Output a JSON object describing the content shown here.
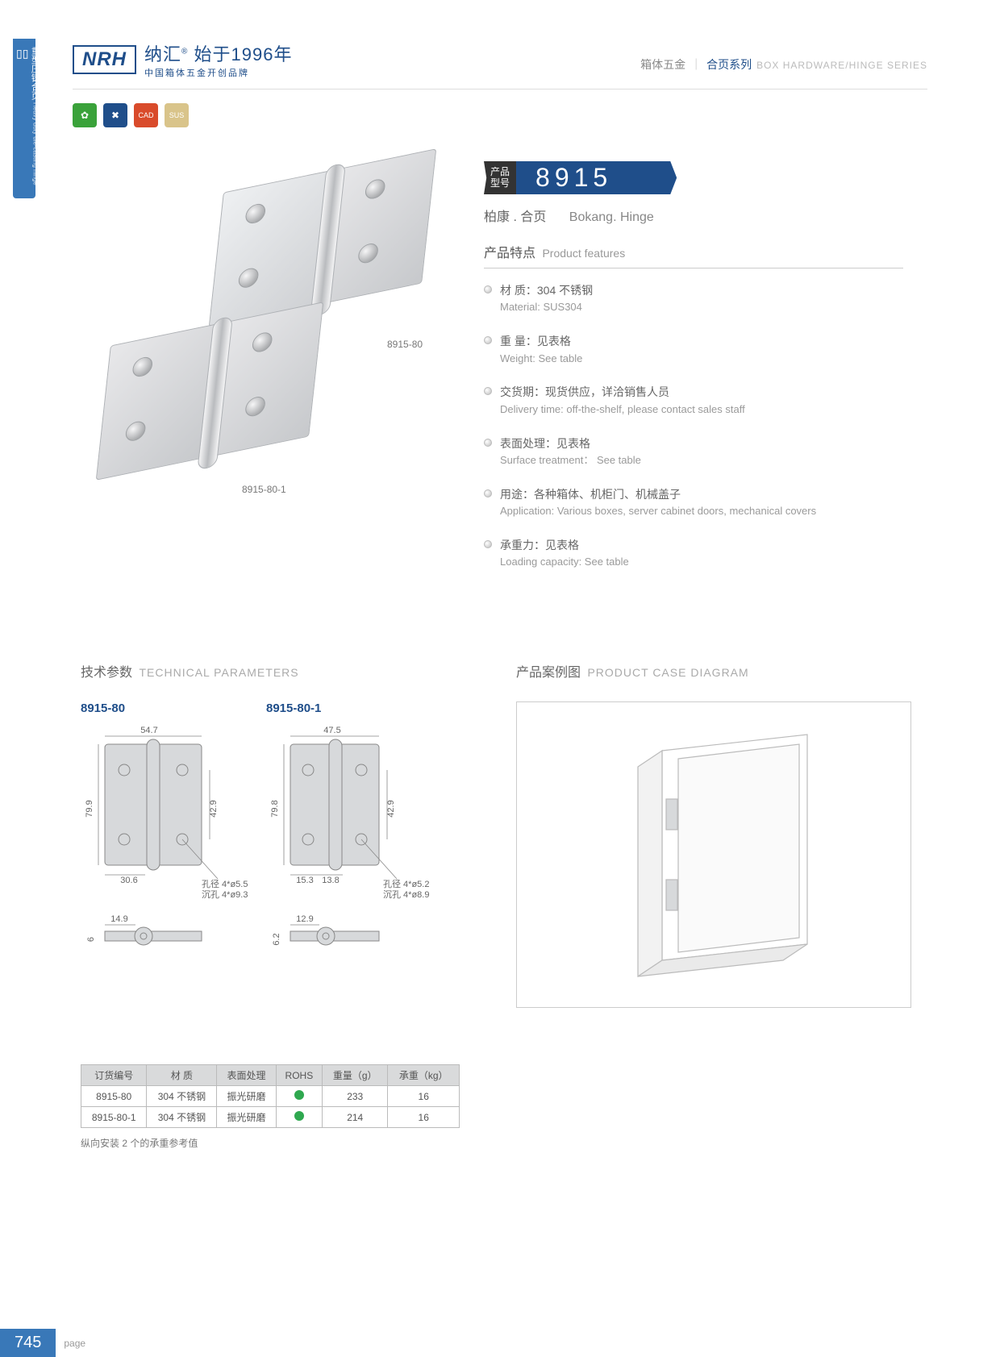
{
  "sideTab": {
    "cn": "重型压铸合页",
    "en": "Heavy duty die-casting hinge"
  },
  "brand": {
    "logo": "NRH",
    "mainCn": "纳汇",
    "mainSuffix": "始于1996年",
    "sub": "中国箱体五金开创品牌"
  },
  "topRight": {
    "cn1": "箱体五金",
    "cn2": "合页系列",
    "en": "BOX HARDWARE/HINGE SERIES"
  },
  "badges": {
    "b1": "✿",
    "b2": "✖",
    "b3": "CAD",
    "b4": "SUS"
  },
  "heroLabels": {
    "l1": "8915-80",
    "l2": "8915-80-1"
  },
  "model": {
    "tag1": "产品",
    "tag2": "型号",
    "number": "8915",
    "subCn": "柏康 . 合页",
    "subEn": "Bokang. Hinge"
  },
  "features": {
    "titleCn": "产品特点",
    "titleEn": "Product features",
    "items": [
      {
        "cn": "材  质：304 不锈钢",
        "en": "Material: SUS304"
      },
      {
        "cn": "重  量：见表格",
        "en": "Weight: See table"
      },
      {
        "cn": "交货期：现货供应，详洽销售人员",
        "en": "Delivery time: off-the-shelf, please contact sales staff"
      },
      {
        "cn": "表面处理：见表格",
        "en": "Surface treatment： See table"
      },
      {
        "cn": "用途：各种箱体、机柜门、机械盖子",
        "en": "Application: Various boxes, server cabinet doors, mechanical covers"
      },
      {
        "cn": "承重力：见表格",
        "en": "Loading capacity: See table"
      }
    ]
  },
  "sections": {
    "techCn": "技术参数",
    "techEn": "TECHNICAL PARAMETERS",
    "caseCn": "产品案例图",
    "caseEn": "PRODUCT CASE DIAGRAM"
  },
  "drawings": {
    "d1": {
      "label": "8915-80",
      "w": "54.7",
      "h": "79.9",
      "innerH": "42.9",
      "col": "30.6",
      "sideW": "14.9",
      "sideH": "6",
      "hole1": "孔径 4*ø5.5",
      "hole2": "沉孔 4*ø9.3"
    },
    "d2": {
      "label": "8915-80-1",
      "w": "47.5",
      "h": "79.8",
      "innerH": "42.9",
      "col1": "15.3",
      "col2": "13.8",
      "sideW": "12.9",
      "sideH": "6.2",
      "hole1": "孔径 4*ø5.2",
      "hole2": "沉孔 4*ø8.9"
    }
  },
  "table": {
    "headers": [
      "订货编号",
      "材    质",
      "表面处理",
      "ROHS",
      "重量（g）",
      "承重（kg）"
    ],
    "rows": [
      [
        "8915-80",
        "304 不锈钢",
        "振光研磨",
        "●",
        "233",
        "16"
      ],
      [
        "8915-80-1",
        "304 不锈钢",
        "振光研磨",
        "●",
        "214",
        "16"
      ]
    ],
    "note": "纵向安装 2 个的承重参考值"
  },
  "footer": {
    "page": "745",
    "label": "page"
  }
}
